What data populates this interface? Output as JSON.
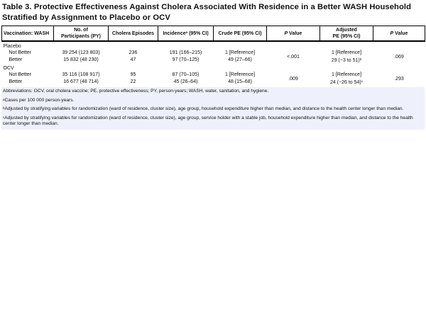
{
  "title": "Table 3. Protective Effectiveness Against Cholera Associated With Residence in a Better WASH Household Stratified by Assignment to Placebo or OCV",
  "headers": {
    "c1": "Vaccination: WASH",
    "c2a": "No. of",
    "c2b": "Participants (PY)",
    "c3": "Cholera Episodes",
    "c4": "Incidence",
    "c4sup": "a",
    "c4b": " (95% CI)",
    "c5": "Crude PE (95% CI)",
    "c6": "P",
    "c6b": " Value",
    "c7a": "Adjusted",
    "c7b": "PE (95% CI)",
    "c8": "P",
    "c8b": " Value"
  },
  "groups": [
    {
      "name": "Placebo",
      "rows": [
        {
          "label": "Not Better",
          "participants": "39 254 (123 803)",
          "episodes": "236",
          "incidence": "191 (166–215)",
          "crude": "1 [Reference]",
          "adjusted": "1 [Reference]",
          "adj_sup": ""
        },
        {
          "label": "Better",
          "participants": "15 832 (48 230)",
          "episodes": "47",
          "incidence": "97 (70–125)",
          "crude": "49 (27–66)",
          "adjusted": "29 (−3 to 51)",
          "adj_sup": "b"
        }
      ],
      "p_crude": "<.001",
      "p_adj": ".069"
    },
    {
      "name": "OCV",
      "rows": [
        {
          "label": "Not Better",
          "participants": "35 116 (108 917)",
          "episodes": "95",
          "incidence": "87 (70–105)",
          "crude": "1 [Reference]",
          "adjusted": "1 [Reference]",
          "adj_sup": ""
        },
        {
          "label": "Better",
          "participants": "16 677 (48 714)",
          "episodes": "22",
          "incidence": "45 (26–64)",
          "crude": "48 (15–68)",
          "adjusted": "24 (−26 to 54)",
          "adj_sup": "c"
        }
      ],
      "p_crude": ".009",
      "p_adj": ".293"
    }
  ],
  "footnotes": {
    "abbrev": "Abbreviations: OCV, oral cholera vaccine; PE, protective effectiveness; PY, person-years; WASH, water, sanitation, and hygiene.",
    "a_sup": "a",
    "a": "Cases per 100 000 person-years.",
    "b_sup": "b",
    "b": "Adjusted by stratifying variables for randomization (ward of residence, cluster size), age group, household expenditure higher than median, and distance to the health center longer than median.",
    "c_sup": "c",
    "c": "Adjusted by stratifying variables for randomization (ward of residence, cluster size), age group, service holder with a stable job, household expenditure higher than median, and distance to the health center longer than median."
  }
}
